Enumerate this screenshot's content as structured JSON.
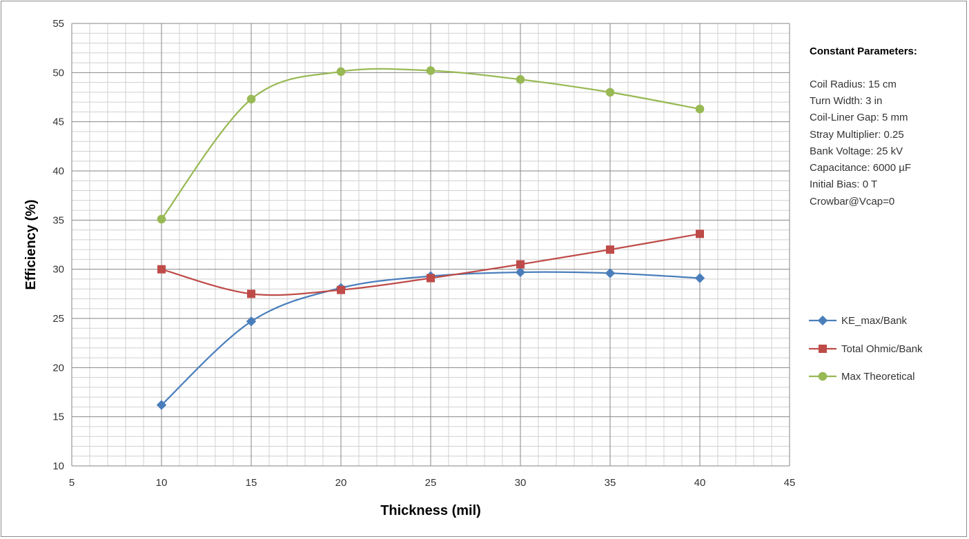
{
  "chart_data": {
    "type": "line",
    "xlabel": "Thickness (mil)",
    "ylabel": "Efficiency (%)",
    "xlim": [
      5,
      45
    ],
    "ylim": [
      10,
      55
    ],
    "x_ticks": [
      "5",
      "10",
      "15",
      "20",
      "25",
      "30",
      "35",
      "40",
      "45"
    ],
    "y_ticks": [
      "10",
      "15",
      "20",
      "25",
      "30",
      "35",
      "40",
      "45",
      "50",
      "55"
    ],
    "x_tick_values": [
      5,
      10,
      15,
      20,
      25,
      30,
      35,
      40,
      45
    ],
    "y_tick_values": [
      10,
      15,
      20,
      25,
      30,
      35,
      40,
      45,
      50,
      55
    ],
    "x_minor_step": 1,
    "y_minor_step": 1,
    "grid": true,
    "smoothed": true,
    "legend_position": "right",
    "x": [
      10,
      15,
      20,
      25,
      30,
      35,
      40
    ],
    "series": [
      {
        "name": "KE_max/Bank",
        "color": "#4a7ebb",
        "marker": "diamond",
        "values": [
          16.2,
          24.7,
          28.1,
          29.3,
          29.7,
          29.6,
          29.1
        ]
      },
      {
        "name": "Total Ohmic/Bank",
        "color": "#be4b48",
        "marker": "square",
        "values": [
          30.0,
          27.5,
          27.9,
          29.1,
          30.5,
          32.0,
          33.6
        ]
      },
      {
        "name": "Max Theoretical",
        "color": "#98b954",
        "marker": "circle",
        "values": [
          35.1,
          47.3,
          50.1,
          50.2,
          49.3,
          48.0,
          46.3
        ]
      }
    ],
    "annotation": {
      "title": "Constant Parameters:",
      "lines": [
        "Coil Radius: 15 cm",
        "Turn Width: 3 in",
        "Coil-Liner Gap: 5 mm",
        "Stray Multiplier: 0.25",
        "Bank Voltage: 25 kV",
        "Capacitance: 6000 µF",
        "Initial Bias: 0 T",
        "Crowbar@Vcap=0"
      ]
    }
  }
}
